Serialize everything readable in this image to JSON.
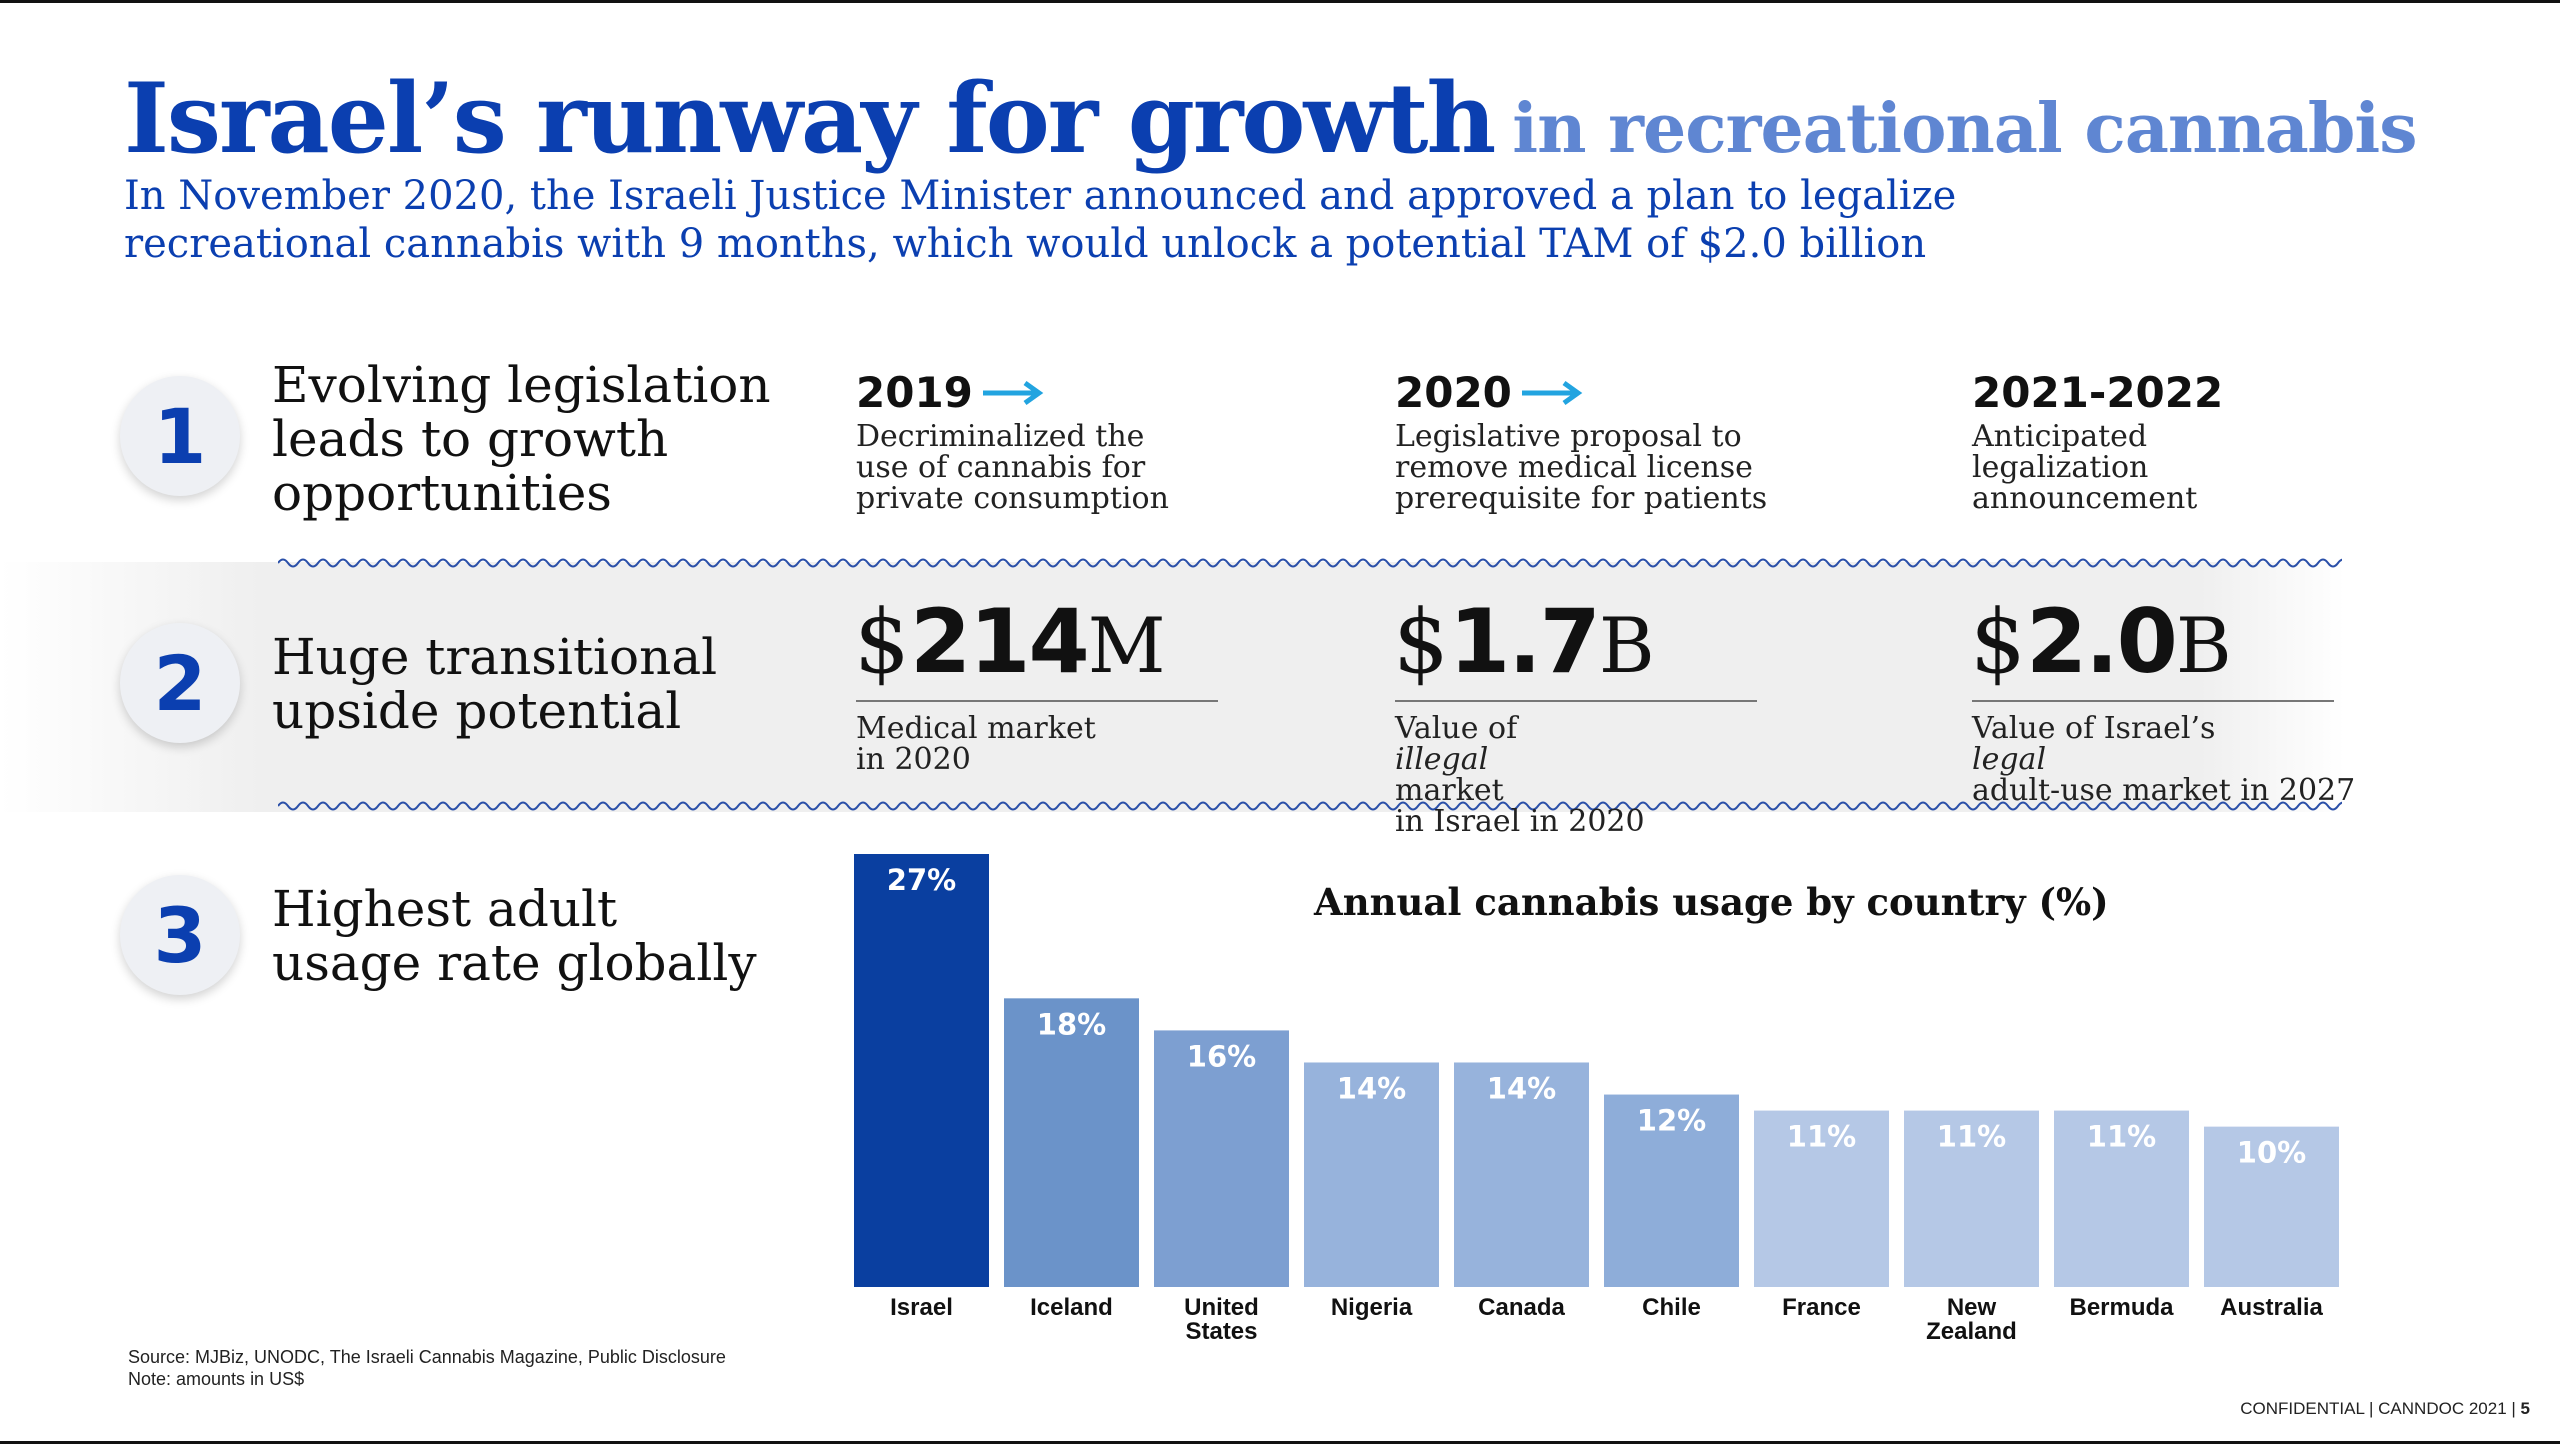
{
  "title": {
    "main": "Israel’s runway for growth",
    "sub": "in recreational cannabis"
  },
  "subtitle": {
    "line1": "In November 2020, the Israeli Justice Minister announced and approved a plan to legalize",
    "line2": "recreational cannabis with 9 months, which would unlock a potential TAM of $2.0 billion"
  },
  "sections": [
    {
      "number": "1",
      "lines": [
        "Evolving legislation",
        "leads to growth",
        "opportunities"
      ]
    },
    {
      "number": "2",
      "lines": [
        "Huge transitional",
        "upside potential"
      ]
    },
    {
      "number": "3",
      "lines": [
        "Highest adult",
        "usage rate globally"
      ]
    }
  ],
  "timeline": [
    {
      "year": "2019",
      "arrow": "right-arrow-icon",
      "lines": [
        "Decriminalized the",
        "use of cannabis for",
        "private consumption"
      ]
    },
    {
      "year": "2020",
      "arrow": "right-arrow-icon",
      "lines": [
        "Legislative proposal to",
        "remove medical license",
        "prerequisite for patients"
      ]
    },
    {
      "year": "2021-2022",
      "arrow": "",
      "lines": [
        "Anticipated",
        "legalization",
        "announcement"
      ]
    }
  ],
  "stats": [
    {
      "currency": "$",
      "amount": "214",
      "unit": "M",
      "line1_parts": [
        "Medical market",
        "",
        ""
      ],
      "line2": "in 2020"
    },
    {
      "currency": "$",
      "amount": "1.7",
      "unit": "B",
      "line1_parts": [
        "Value of ",
        "illegal",
        " market"
      ],
      "line2": "in Israel in 2020"
    },
    {
      "currency": "$",
      "amount": "2.0",
      "unit": "B",
      "line1_parts": [
        "Value of Israel’s ",
        "legal",
        ""
      ],
      "line2": "adult-use market in 2027"
    }
  ],
  "chart_data": {
    "type": "bar",
    "title": "Annual cannabis usage by country (%)",
    "categories": [
      "Israel",
      "Iceland",
      "United States",
      "Nigeria",
      "Canada",
      "Chile",
      "France",
      "New Zealand",
      "Bermuda",
      "Australia"
    ],
    "category_lines": [
      [
        "Israel"
      ],
      [
        "Iceland"
      ],
      [
        "United",
        "States"
      ],
      [
        "Nigeria"
      ],
      [
        "Canada"
      ],
      [
        "Chile"
      ],
      [
        "France"
      ],
      [
        "New",
        "Zealand"
      ],
      [
        "Bermuda"
      ],
      [
        "Australia"
      ]
    ],
    "values": [
      27,
      18,
      16,
      14,
      14,
      12,
      11,
      11,
      11,
      10
    ],
    "value_labels": [
      "27%",
      "18%",
      "16%",
      "14%",
      "14%",
      "12%",
      "11%",
      "11%",
      "11%",
      "10%"
    ],
    "bar_colors": [
      "#0a3fa0",
      "#6b93c9",
      "#7d9fd1",
      "#97b3dc",
      "#97b3dc",
      "#8eadd9",
      "#b5c8e6",
      "#b5c8e6",
      "#b5c8e6",
      "#b5c8e6"
    ],
    "ylim": [
      0,
      27
    ],
    "xlabel": "",
    "ylabel": ""
  },
  "footnote": {
    "source": "Source: MJBiz, UNODC, The Israeli Cannabis Magazine, Public Disclosure",
    "note": "Note: amounts in US$"
  },
  "footer": {
    "text": "CONFIDENTIAL | CANNDOC 2021 |",
    "page": "5"
  },
  "colors": {
    "brand_blue": "#0b3fb0",
    "light_blue": "#5f86d2",
    "arrow_blue": "#22a4e0"
  }
}
